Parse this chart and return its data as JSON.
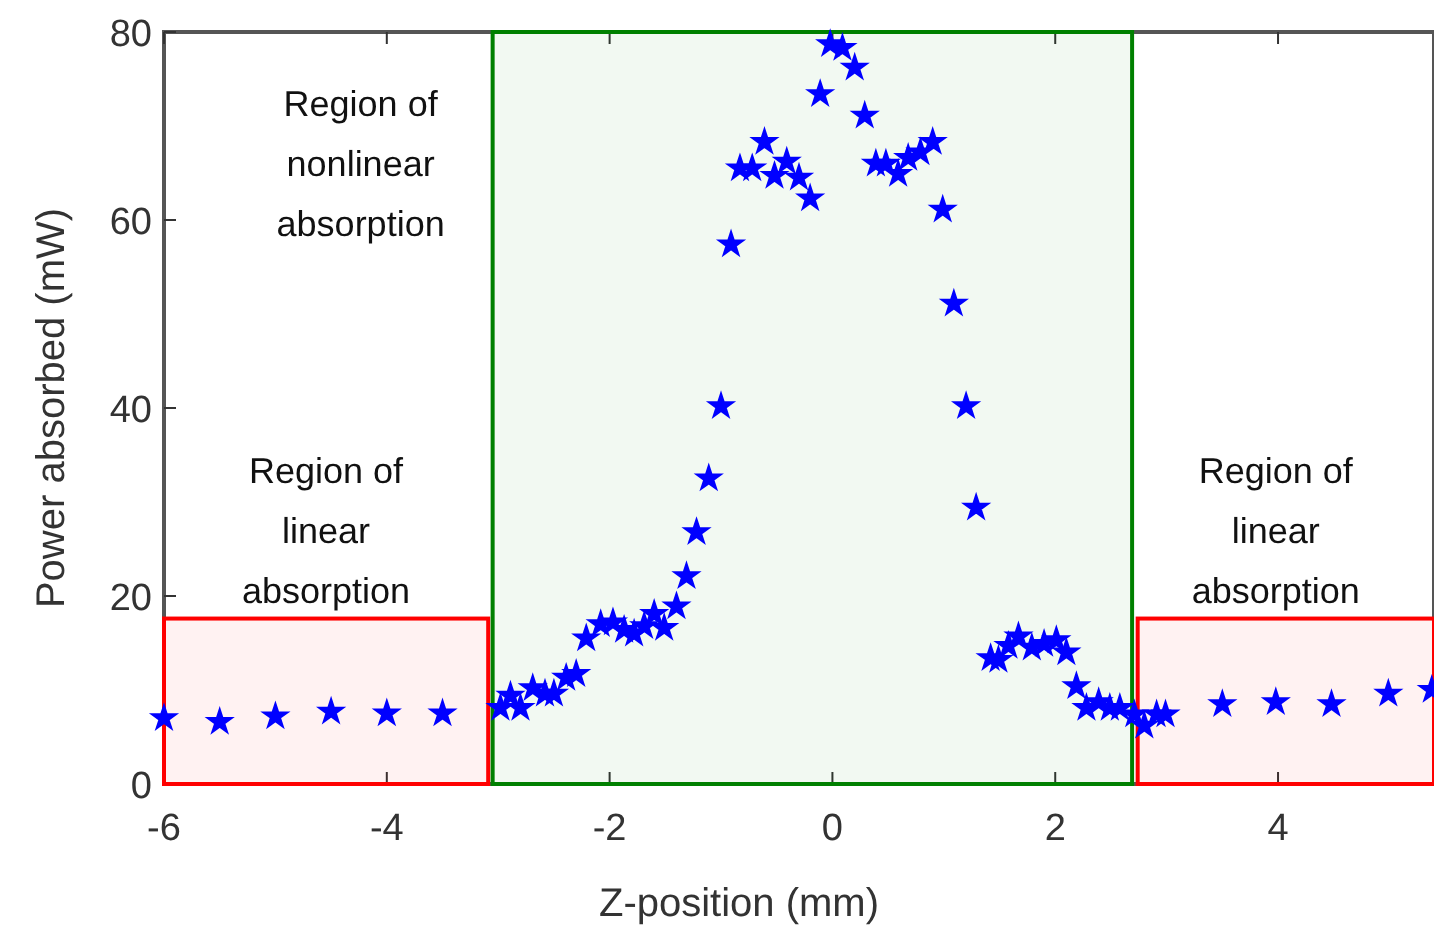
{
  "chart_data": {
    "type": "scatter",
    "xlabel": "Z-position (mm)",
    "ylabel": "Power absorbed (mW)",
    "xlim": [
      -6,
      5.4
    ],
    "xticks": [
      -6,
      -4,
      -2,
      0,
      2,
      4
    ],
    "ylim": [
      0,
      80
    ],
    "yticks": [
      0,
      20,
      40,
      60,
      80
    ],
    "grid": false,
    "marker": "star",
    "series": [
      {
        "color": "#0000ff",
        "x": [
          -6,
          -5.5,
          -5,
          -4.5,
          -4,
          -3.5,
          -2.98,
          -2.89,
          -2.8,
          -2.69,
          -2.58,
          -2.5,
          -2.39,
          -2.3,
          -2.21,
          -2.08,
          -1.97,
          -1.87,
          -1.78,
          -1.69,
          -1.6,
          -1.51,
          -1.4,
          -1.31,
          -1.22,
          -1.11,
          -1,
          -0.91,
          -0.83,
          -0.72,
          -0.61,
          -0.52,
          -0.41,
          -0.3,
          -0.2,
          -0.11,
          -0.02,
          0.09,
          0.2,
          0.29,
          0.39,
          0.48,
          0.59,
          0.68,
          0.79,
          0.9,
          0.99,
          1.09,
          1.2,
          1.29,
          1.42,
          1.49,
          1.58,
          1.67,
          1.79,
          1.9,
          2.01,
          2.1,
          2.19,
          2.28,
          2.39,
          2.49,
          2.58,
          2.71,
          2.8,
          2.91,
          2.99,
          3.5,
          3.98,
          4.48,
          4.99,
          5.38
        ],
        "values": [
          7,
          6.6,
          7.2,
          7.7,
          7.5,
          7.5,
          8.1,
          9.4,
          8.1,
          10.2,
          9.6,
          9.6,
          11.3,
          11.7,
          15.5,
          17,
          17.2,
          16.4,
          16,
          16.8,
          18.1,
          16.6,
          18.9,
          22.1,
          26.8,
          32.5,
          40.2,
          57.4,
          65.5,
          65.5,
          68.3,
          64.7,
          66.2,
          64.5,
          62.3,
          73.4,
          78.7,
          78.3,
          76.2,
          71.1,
          66,
          66,
          64.9,
          66.6,
          67.2,
          68.3,
          61.1,
          51.1,
          40.2,
          29.4,
          13.4,
          13.2,
          14.7,
          15.7,
          14.5,
          14.9,
          15.3,
          14,
          10.4,
          8.1,
          8.7,
          8.1,
          8.1,
          7.4,
          6.2,
          7.4,
          7.4,
          8.5,
          8.7,
          8.5,
          9.6,
          10
        ]
      }
    ],
    "bands": [
      {
        "axis": "x",
        "from": -6,
        "to": -3.09,
        "label": "Region of\nlinear\nabsorption",
        "color": "#ff0000"
      },
      {
        "axis": "x",
        "from": -3.05,
        "to": 2.69,
        "label": "Region of\nnonlinear\nabsorption",
        "color": "#008000"
      },
      {
        "axis": "x",
        "from": 2.74,
        "to": 5.4,
        "label": "Region of\nlinear\nabsorption",
        "color": "#ff0000"
      }
    ]
  }
}
